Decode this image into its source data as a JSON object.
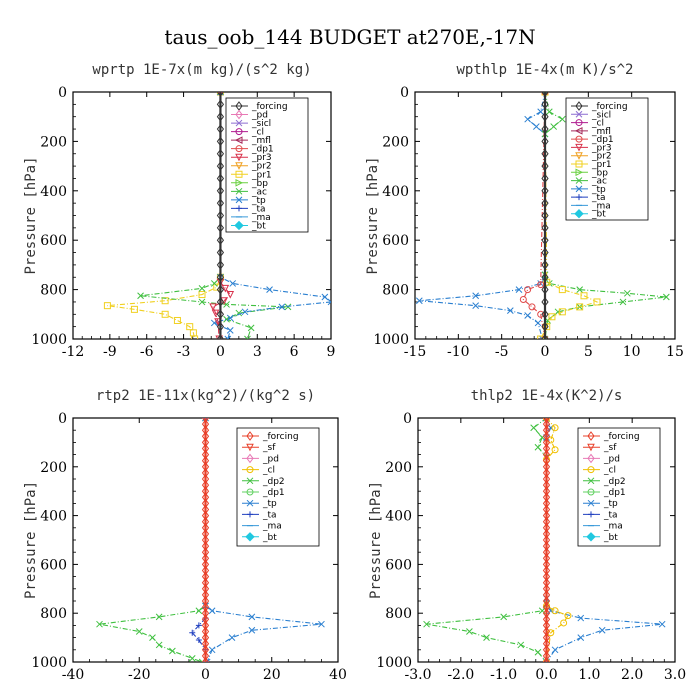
{
  "figure": {
    "title": "taus_oob_144  BUDGET at270E,-17N"
  },
  "colors": {
    "forcing": "#333333",
    "sf": "#e8402a",
    "pd": "#e879b5",
    "sicl": "#8c6cd1",
    "cl_purple": "#b01a8f",
    "mfl": "#a52a5a",
    "dp1_red": "#e04a4a",
    "pr3": "#d8304a",
    "pr2": "#f0a020",
    "pr1": "#f0d020",
    "bp": "#6ad040",
    "ac": "#3fbf3f",
    "tp": "#2a7fd0",
    "ta": "#1f3fbf",
    "ma": "#3a9ad9",
    "bt": "#20c8e0",
    "cl_yellow": "#f0c000",
    "dp2": "#40c040",
    "dp1_green": "#60d060"
  },
  "chart_data": [
    {
      "type": "line",
      "title": "wprtp  1E-7x(m kg)/(s^2 kg)",
      "ylabel": "Pressure [hPa]",
      "xlim": [
        -12,
        9
      ],
      "xticks": [
        "-12",
        "-9",
        "-6",
        "-3",
        "0",
        "3",
        "6",
        "9"
      ],
      "ylim": [
        1000,
        0
      ],
      "yticks": [
        "0",
        "200",
        "400",
        "600",
        "800",
        "1000"
      ],
      "legend": [
        "_forcing",
        "_pd",
        "_sicl",
        "_cl",
        "_mfl",
        "_dp1",
        "_pr3",
        "_pr2",
        "_pr1",
        "_bp",
        "_ac",
        "_tp",
        "_ta",
        "_ma",
        "_bt"
      ],
      "series": [
        {
          "name": "_pr1",
          "color_key": "pr1",
          "x": [
            0,
            0,
            -0.3,
            -1.5,
            -4.5,
            -9.2,
            -7.0,
            -4.5,
            -3.5,
            -2.5,
            -2.2,
            -2.1
          ],
          "y": [
            0,
            750,
            790,
            820,
            845,
            865,
            880,
            900,
            925,
            950,
            975,
            1000
          ]
        },
        {
          "name": "_ac",
          "color_key": "ac",
          "x": [
            0,
            0,
            -0.5,
            -1.5,
            -6.5,
            -1.5,
            0.5,
            5.5,
            1.5,
            0.5,
            2.5,
            2.2
          ],
          "y": [
            0,
            750,
            775,
            795,
            825,
            850,
            860,
            870,
            895,
            920,
            955,
            1000
          ]
        },
        {
          "name": "_tp",
          "color_key": "tp",
          "x": [
            0,
            0,
            1.0,
            4.0,
            8.5,
            9.0,
            5.0,
            2.0,
            0.8,
            -0.5,
            0.8,
            0.6
          ],
          "y": [
            0,
            750,
            775,
            800,
            830,
            850,
            870,
            890,
            915,
            935,
            965,
            1000
          ]
        },
        {
          "name": "_pr3",
          "color_key": "pr3",
          "x": [
            0,
            0,
            0.4,
            0.8,
            0.3,
            -0.6,
            -0.4,
            -0.2,
            -0.1
          ],
          "y": [
            0,
            770,
            795,
            820,
            845,
            870,
            895,
            930,
            1000
          ]
        },
        {
          "name": "_forcing",
          "color_key": "forcing",
          "x": [
            0,
            0,
            0,
            0,
            0,
            0,
            0,
            0,
            0,
            0,
            0,
            0,
            0,
            0,
            0,
            0,
            0,
            0,
            0,
            0,
            0
          ],
          "y": [
            0,
            50,
            100,
            150,
            200,
            250,
            300,
            350,
            400,
            450,
            500,
            550,
            600,
            650,
            700,
            750,
            800,
            850,
            900,
            950,
            1000
          ]
        }
      ]
    },
    {
      "type": "line",
      "title": "wpthlp  1E-4x(m K)/s^2",
      "ylabel": "Pressure [hPa]",
      "xlim": [
        -15,
        15
      ],
      "xticks": [
        "-15",
        "-10",
        "-5",
        "0",
        "5",
        "10",
        "15"
      ],
      "ylim": [
        1000,
        0
      ],
      "yticks": [
        "0",
        "200",
        "400",
        "600",
        "800",
        "1000"
      ],
      "legend": [
        "_forcing",
        "_sicl",
        "_cl",
        "_mfl",
        "_dp1",
        "_pr3",
        "_pr2",
        "_pr1",
        "_bp",
        "_ac",
        "_tp",
        "_ta",
        "_ma",
        "_bt"
      ],
      "series": [
        {
          "name": "_tp",
          "color_key": "tp",
          "x": [
            0,
            -0.5,
            -2.0,
            -1.0,
            0,
            0,
            -0.5,
            -3.0,
            -8.0,
            -14.5,
            -8.0,
            -4.0,
            -2.0,
            -0.8,
            -0.3
          ],
          "y": [
            0,
            80,
            110,
            140,
            170,
            740,
            775,
            800,
            825,
            845,
            865,
            885,
            905,
            935,
            1000
          ]
        },
        {
          "name": "_ac",
          "color_key": "ac",
          "x": [
            0,
            0.5,
            2.0,
            1.0,
            0,
            0,
            0.5,
            4.0,
            9.5,
            14.0,
            9.0,
            4.0,
            1.5,
            0.3,
            0
          ],
          "y": [
            0,
            80,
            110,
            140,
            170,
            740,
            775,
            800,
            815,
            830,
            850,
            870,
            890,
            925,
            1000
          ]
        },
        {
          "name": "_pr1",
          "color_key": "pr1",
          "x": [
            0,
            0.2,
            2.0,
            4.5,
            6.0,
            4.0,
            2.0,
            0.8,
            0.2,
            -0.5
          ],
          "y": [
            0,
            770,
            800,
            825,
            850,
            870,
            890,
            910,
            950,
            1000
          ]
        },
        {
          "name": "_dp1",
          "color_key": "dp1_red",
          "x": [
            0,
            -0.5,
            -2.0,
            -2.5,
            -1.5,
            -0.5,
            0
          ],
          "y": [
            0,
            780,
            800,
            840,
            870,
            900,
            1000
          ]
        },
        {
          "name": "_forcing",
          "color_key": "forcing",
          "x": [
            0,
            0,
            0,
            0,
            0,
            0,
            0,
            0,
            0,
            0,
            0,
            0,
            0,
            0,
            0,
            0,
            0,
            0,
            0,
            0,
            0
          ],
          "y": [
            0,
            50,
            100,
            150,
            200,
            250,
            300,
            350,
            400,
            450,
            500,
            550,
            600,
            650,
            700,
            750,
            800,
            850,
            900,
            950,
            1000
          ]
        }
      ]
    },
    {
      "type": "line",
      "title": "rtp2  1E-11x(kg^2)/(kg^2 s)",
      "ylabel": "Pressure [hPa]",
      "xlim": [
        -40,
        40
      ],
      "xticks": [
        "-40",
        "-20",
        "0",
        "20",
        "40"
      ],
      "ylim": [
        1000,
        0
      ],
      "yticks": [
        "0",
        "200",
        "400",
        "600",
        "800",
        "1000"
      ],
      "legend": [
        "_forcing",
        "_sf",
        "_pd",
        "_cl",
        "_dp2",
        "_dp1",
        "_tp",
        "_ta",
        "_ma",
        "_bt"
      ],
      "series": [
        {
          "name": "_dp2",
          "color_key": "dp2",
          "x": [
            0,
            0,
            -2,
            -14,
            -32,
            -20,
            -16,
            -14,
            -10,
            -4,
            -1
          ],
          "y": [
            0,
            770,
            790,
            815,
            845,
            875,
            900,
            930,
            955,
            985,
            1000
          ]
        },
        {
          "name": "_tp",
          "color_key": "tp",
          "x": [
            0,
            0,
            2,
            14,
            35,
            14,
            8,
            2,
            0.5
          ],
          "y": [
            0,
            770,
            790,
            815,
            845,
            870,
            900,
            950,
            1000
          ]
        },
        {
          "name": "_ta",
          "color_key": "ta",
          "x": [
            0,
            0,
            -2,
            -4,
            -2,
            0,
            0
          ],
          "y": [
            0,
            820,
            850,
            880,
            910,
            950,
            1000
          ]
        },
        {
          "name": "_forcing",
          "color_key": "sf",
          "x": [
            0,
            0,
            0,
            0,
            0,
            0,
            0,
            0,
            0,
            0,
            0,
            0,
            0,
            0,
            0,
            0,
            0,
            0,
            0,
            0,
            0,
            0,
            0,
            0,
            0,
            0,
            0,
            0,
            0,
            0,
            0,
            0,
            0,
            0,
            0,
            0,
            0,
            0,
            0,
            0,
            0
          ],
          "y": [
            0,
            25,
            50,
            75,
            100,
            125,
            150,
            175,
            200,
            225,
            250,
            275,
            300,
            325,
            350,
            375,
            400,
            425,
            450,
            475,
            500,
            525,
            550,
            575,
            600,
            625,
            650,
            675,
            700,
            725,
            750,
            775,
            800,
            825,
            850,
            875,
            900,
            925,
            950,
            975,
            1000
          ]
        }
      ]
    },
    {
      "type": "line",
      "title": "thlp2  1E-4x(K^2)/s",
      "ylabel": "Pressure [hPa]",
      "xlim": [
        -3.0,
        3.0
      ],
      "xticks": [
        "-3.0",
        "-2.0",
        "-1.0",
        "0.0",
        "1.0",
        "2.0",
        "3.0"
      ],
      "ylim": [
        1000,
        0
      ],
      "yticks": [
        "0",
        "200",
        "400",
        "600",
        "800",
        "1000"
      ],
      "legend": [
        "_forcing",
        "_sf",
        "_pd",
        "_cl",
        "_dp2",
        "_dp1",
        "_tp",
        "_ta",
        "_ma",
        "_bt"
      ],
      "series": [
        {
          "name": "_dp2",
          "color_key": "dp2",
          "x": [
            0,
            -0.3,
            -0.1,
            -0.2,
            0,
            0,
            -0.1,
            -1.0,
            -2.8,
            -1.8,
            -1.4,
            -0.6,
            -0.2,
            0
          ],
          "y": [
            0,
            40,
            80,
            120,
            160,
            760,
            790,
            815,
            845,
            875,
            900,
            930,
            960,
            1000
          ]
        },
        {
          "name": "_tp",
          "color_key": "tp",
          "x": [
            0,
            0.1,
            0,
            0,
            0.1,
            0.8,
            2.7,
            1.3,
            0.8,
            0.2,
            0
          ],
          "y": [
            0,
            40,
            80,
            740,
            790,
            820,
            845,
            870,
            900,
            950,
            1000
          ]
        },
        {
          "name": "_cl",
          "color_key": "cl_yellow",
          "x": [
            0,
            0.2,
            0.1,
            0.2,
            0,
            0,
            0.2,
            0.5,
            0.4,
            0.1,
            0
          ],
          "y": [
            0,
            40,
            90,
            130,
            170,
            770,
            790,
            810,
            840,
            880,
            1000
          ]
        },
        {
          "name": "_forcing",
          "color_key": "sf",
          "x": [
            0,
            0,
            0,
            0,
            0,
            0,
            0,
            0,
            0,
            0,
            0,
            0,
            0,
            0,
            0,
            0,
            0,
            0,
            0,
            0,
            0,
            0,
            0,
            0,
            0,
            0,
            0,
            0,
            0,
            0,
            0,
            0,
            0,
            0,
            0,
            0,
            0,
            0,
            0,
            0,
            0
          ],
          "y": [
            0,
            25,
            50,
            75,
            100,
            125,
            150,
            175,
            200,
            225,
            250,
            275,
            300,
            325,
            350,
            375,
            400,
            425,
            450,
            475,
            500,
            525,
            550,
            575,
            600,
            625,
            650,
            675,
            700,
            725,
            750,
            775,
            800,
            825,
            850,
            875,
            900,
            925,
            950,
            975,
            1000
          ]
        }
      ]
    }
  ]
}
